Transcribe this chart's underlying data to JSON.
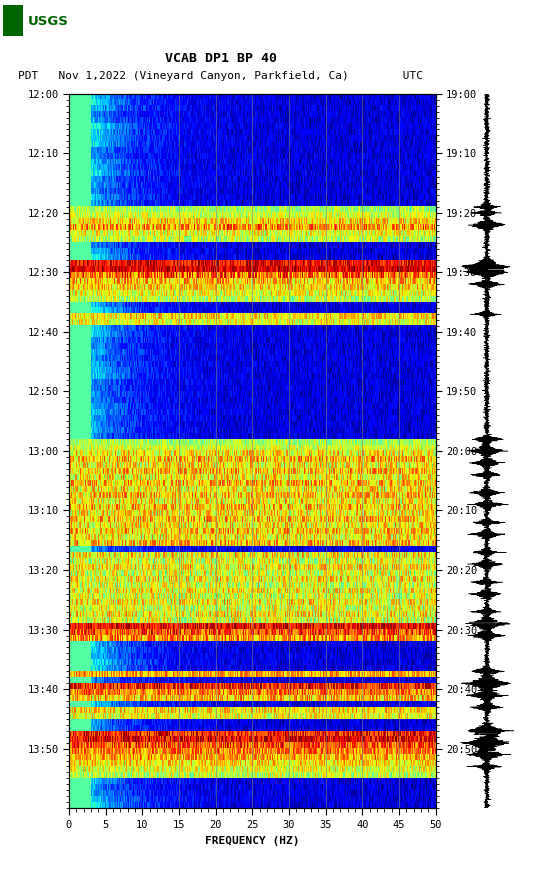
{
  "title_line1": "VCAB DP1 BP 40",
  "title_line2": "PDT   Nov 1,2022 (Vineyard Canyon, Parkfield, Ca)        UTC",
  "xlabel": "FREQUENCY (HZ)",
  "freq_min": 0,
  "freq_max": 50,
  "freq_ticks": [
    0,
    5,
    10,
    15,
    20,
    25,
    30,
    35,
    40,
    45,
    50
  ],
  "time_labels_left": [
    "12:00",
    "12:10",
    "12:20",
    "12:30",
    "12:40",
    "12:50",
    "13:00",
    "13:10",
    "13:20",
    "13:30",
    "13:40",
    "13:50"
  ],
  "time_labels_right": [
    "19:00",
    "19:10",
    "19:20",
    "19:30",
    "19:40",
    "19:50",
    "20:00",
    "20:10",
    "20:20",
    "20:30",
    "20:40",
    "20:50"
  ],
  "n_time": 120,
  "n_freq": 500,
  "grid_freq_lines": [
    15,
    20,
    25,
    30,
    35,
    40,
    45
  ],
  "background_color": "#ffffff",
  "seismo_bg": "#ffffff",
  "usgs_green": "#006400",
  "seismo_color": "#000000",
  "grid_color": "#808080",
  "font_family": "monospace"
}
